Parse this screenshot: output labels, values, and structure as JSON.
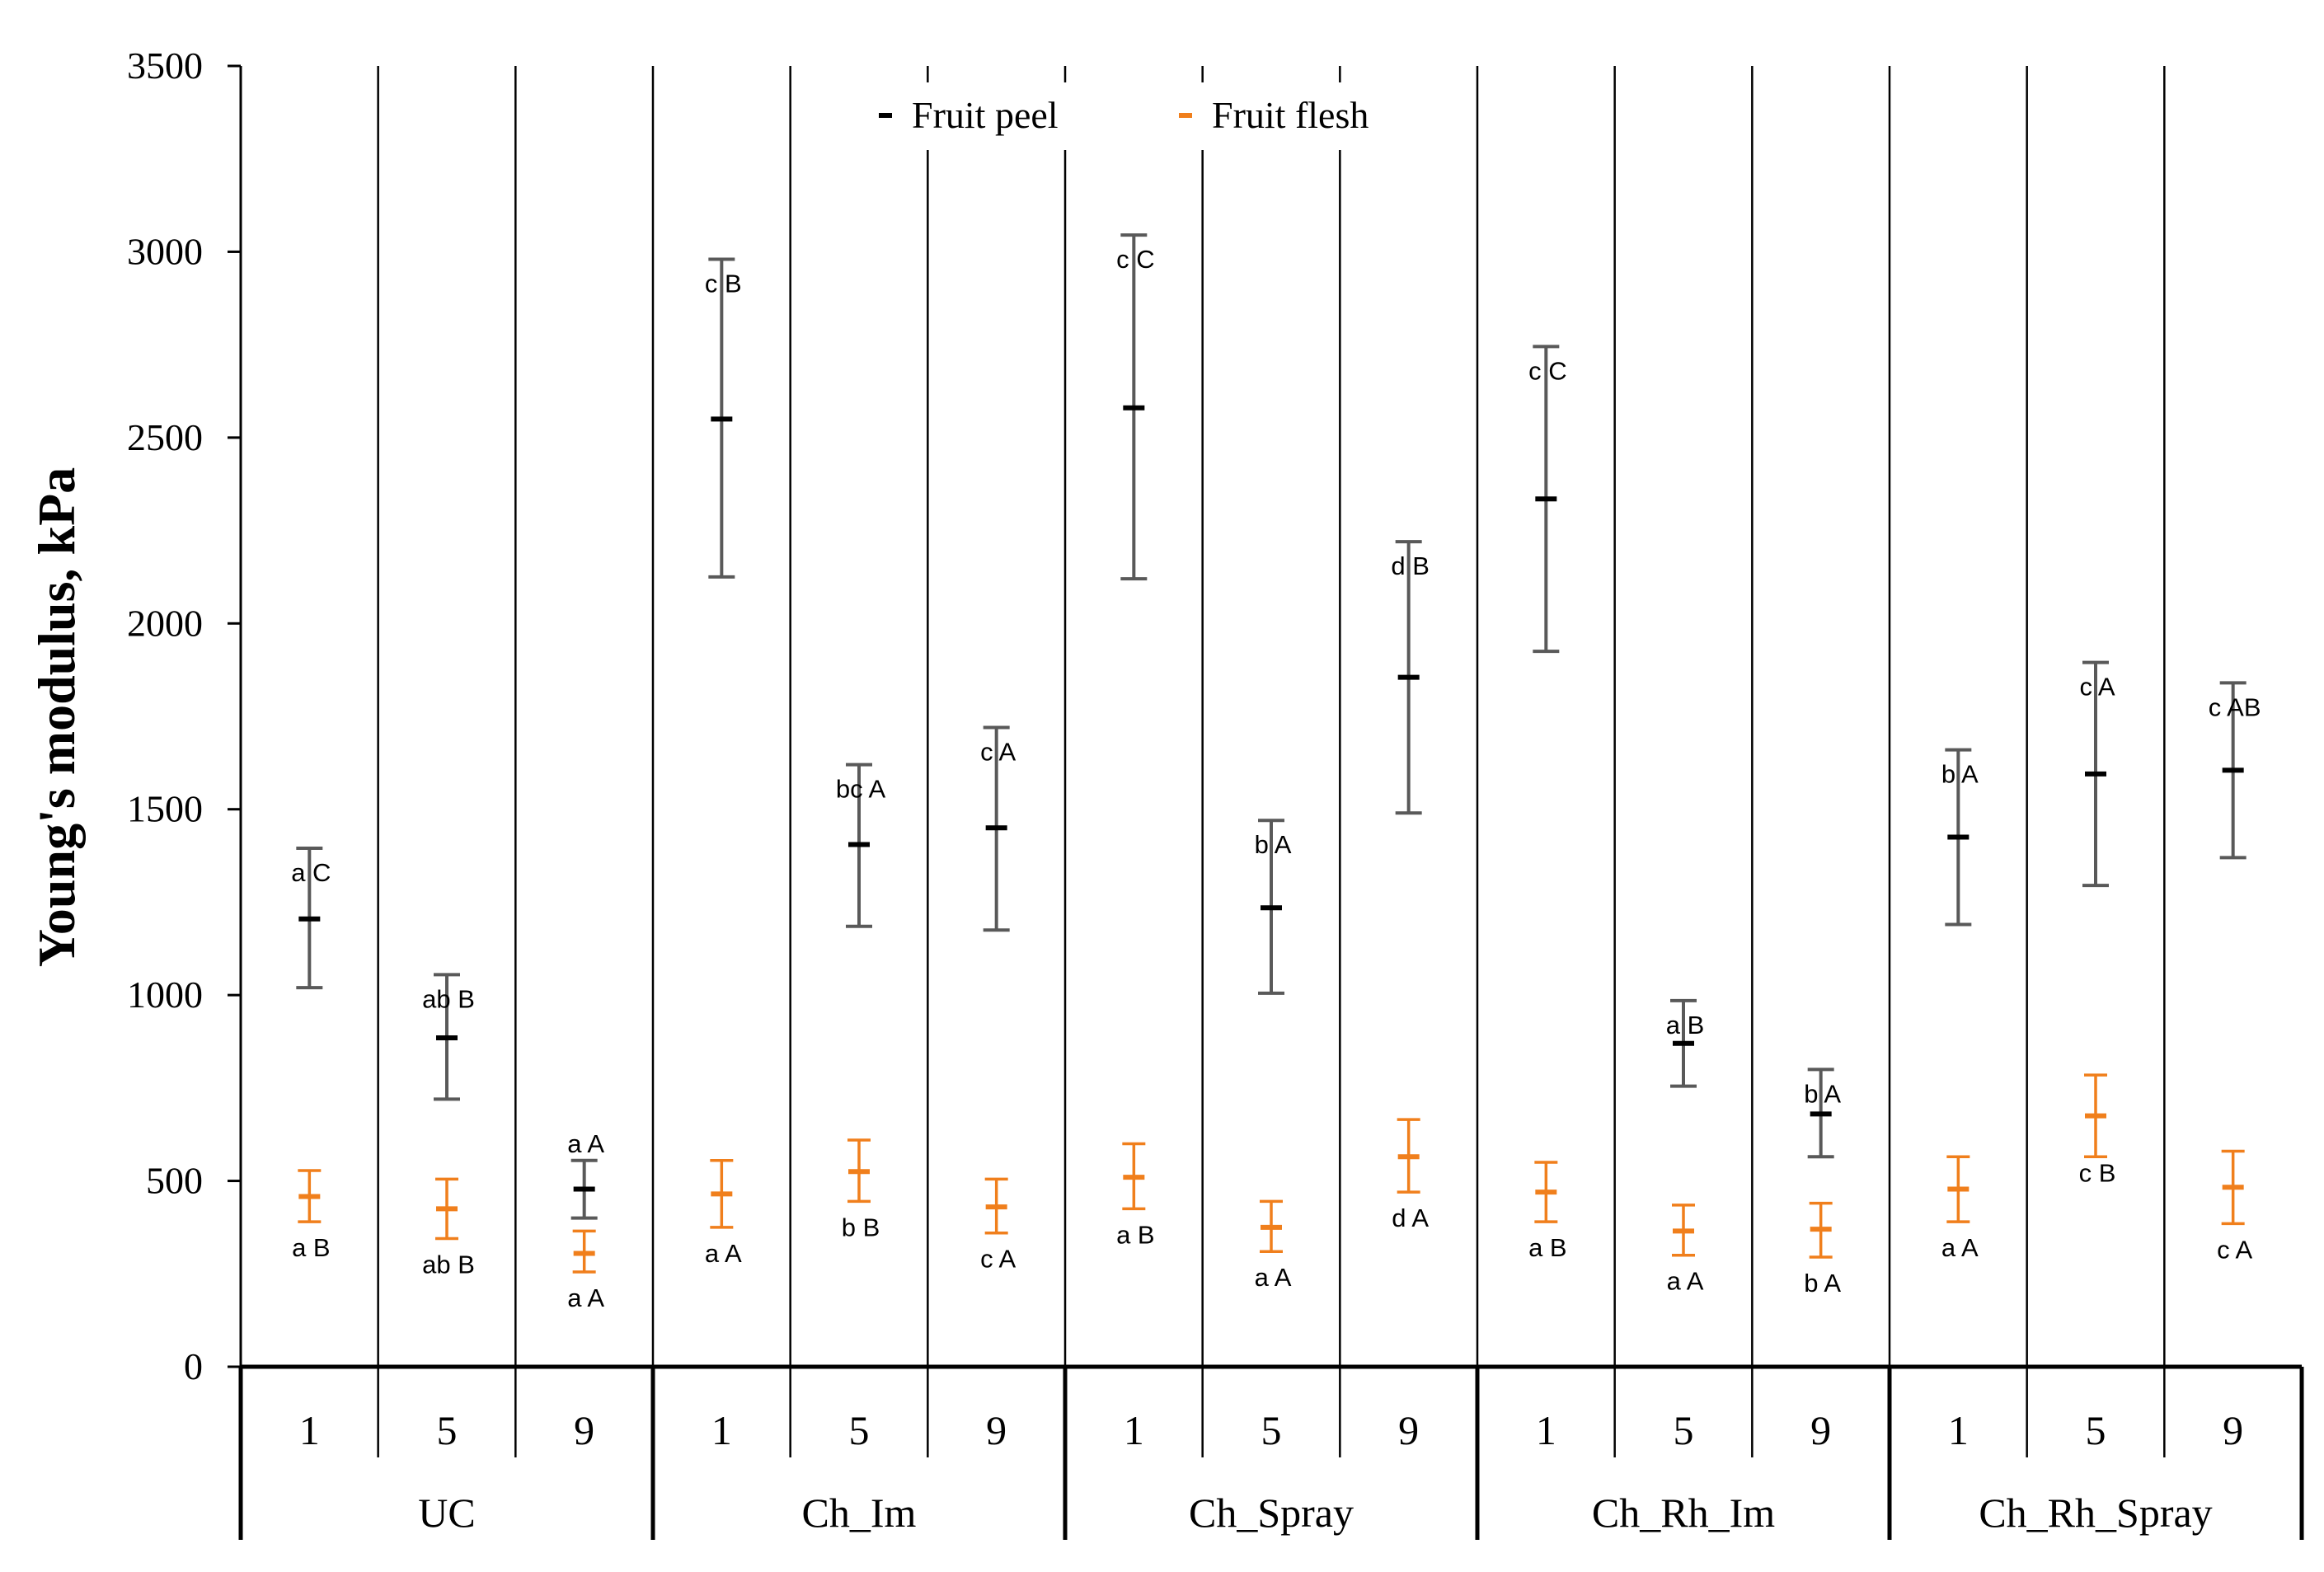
{
  "chart_data": {
    "type": "errorbar",
    "ylabel": "Young's modulus, kPa",
    "xlabel": "",
    "ylim": [
      0,
      3500
    ],
    "yticks": [
      "0",
      "500",
      "1000",
      "1500",
      "2000",
      "2500",
      "3000",
      "3500"
    ],
    "groups": [
      "UC",
      "Ch_Im",
      "Ch_Spray",
      "Ch_Rh_Im",
      "Ch_Rh_Spray"
    ],
    "categories": [
      "1",
      "5",
      "9"
    ],
    "legend": {
      "position": "top-center"
    },
    "grid": false,
    "series": [
      {
        "name": "Fruit peel",
        "color": "#000000",
        "errorColor": "#595959",
        "points": [
          {
            "group": "UC",
            "x": "1",
            "y": 1205,
            "low": 1020,
            "high": 1395,
            "label": "a C"
          },
          {
            "group": "UC",
            "x": "5",
            "y": 885,
            "low": 720,
            "high": 1055,
            "label": "ab B"
          },
          {
            "group": "UC",
            "x": "9",
            "y": 478,
            "low": 400,
            "high": 555,
            "label": "a A"
          },
          {
            "group": "Ch_Im",
            "x": "1",
            "y": 2550,
            "low": 2125,
            "high": 2980,
            "label": "c B"
          },
          {
            "group": "Ch_Im",
            "x": "5",
            "y": 1405,
            "low": 1185,
            "high": 1620,
            "label": "bc A"
          },
          {
            "group": "Ch_Im",
            "x": "9",
            "y": 1450,
            "low": 1175,
            "high": 1720,
            "label": "c A"
          },
          {
            "group": "Ch_Spray",
            "x": "1",
            "y": 2580,
            "low": 2120,
            "high": 3045,
            "label": "c C"
          },
          {
            "group": "Ch_Spray",
            "x": "5",
            "y": 1235,
            "low": 1005,
            "high": 1470,
            "label": "b A"
          },
          {
            "group": "Ch_Spray",
            "x": "9",
            "y": 1855,
            "low": 1490,
            "high": 2220,
            "label": "d B"
          },
          {
            "group": "Ch_Rh_Im",
            "x": "1",
            "y": 2335,
            "low": 1925,
            "high": 2745,
            "label": "c C"
          },
          {
            "group": "Ch_Rh_Im",
            "x": "5",
            "y": 870,
            "low": 755,
            "high": 985,
            "label": "a B"
          },
          {
            "group": "Ch_Rh_Im",
            "x": "9",
            "y": 680,
            "low": 565,
            "high": 800,
            "label": "b A"
          },
          {
            "group": "Ch_Rh_Spray",
            "x": "1",
            "y": 1425,
            "low": 1190,
            "high": 1660,
            "label": "b A"
          },
          {
            "group": "Ch_Rh_Spray",
            "x": "5",
            "y": 1595,
            "low": 1295,
            "high": 1895,
            "label": "c A"
          },
          {
            "group": "Ch_Rh_Spray",
            "x": "9",
            "y": 1605,
            "low": 1370,
            "high": 1840,
            "label": "c AB"
          }
        ]
      },
      {
        "name": "Fruit flesh",
        "color": "#F07F1C",
        "errorColor": "#F07F1C",
        "points": [
          {
            "group": "UC",
            "x": "1",
            "y": 458,
            "low": 390,
            "high": 528,
            "label": "a B"
          },
          {
            "group": "UC",
            "x": "5",
            "y": 425,
            "low": 345,
            "high": 505,
            "label": "ab B"
          },
          {
            "group": "UC",
            "x": "9",
            "y": 305,
            "low": 255,
            "high": 365,
            "label": "a A"
          },
          {
            "group": "Ch_Im",
            "x": "1",
            "y": 465,
            "low": 375,
            "high": 555,
            "label": "a A"
          },
          {
            "group": "Ch_Im",
            "x": "5",
            "y": 525,
            "low": 445,
            "high": 610,
            "label": "b B"
          },
          {
            "group": "Ch_Im",
            "x": "9",
            "y": 430,
            "low": 360,
            "high": 505,
            "label": "c A"
          },
          {
            "group": "Ch_Spray",
            "x": "1",
            "y": 510,
            "low": 425,
            "high": 600,
            "label": "a B"
          },
          {
            "group": "Ch_Spray",
            "x": "5",
            "y": 375,
            "low": 310,
            "high": 445,
            "label": "a A"
          },
          {
            "group": "Ch_Spray",
            "x": "9",
            "y": 565,
            "low": 470,
            "high": 665,
            "label": "d A"
          },
          {
            "group": "Ch_Rh_Im",
            "x": "1",
            "y": 470,
            "low": 390,
            "high": 550,
            "label": "a B"
          },
          {
            "group": "Ch_Rh_Im",
            "x": "5",
            "y": 365,
            "low": 300,
            "high": 435,
            "label": "a A"
          },
          {
            "group": "Ch_Rh_Im",
            "x": "9",
            "y": 370,
            "low": 295,
            "high": 440,
            "label": "b A"
          },
          {
            "group": "Ch_Rh_Spray",
            "x": "1",
            "y": 478,
            "low": 390,
            "high": 565,
            "label": "a A"
          },
          {
            "group": "Ch_Rh_Spray",
            "x": "5",
            "y": 675,
            "low": 565,
            "high": 785,
            "label": "c B"
          },
          {
            "group": "Ch_Rh_Spray",
            "x": "9",
            "y": 483,
            "low": 385,
            "high": 580,
            "label": "c A"
          }
        ]
      }
    ]
  }
}
